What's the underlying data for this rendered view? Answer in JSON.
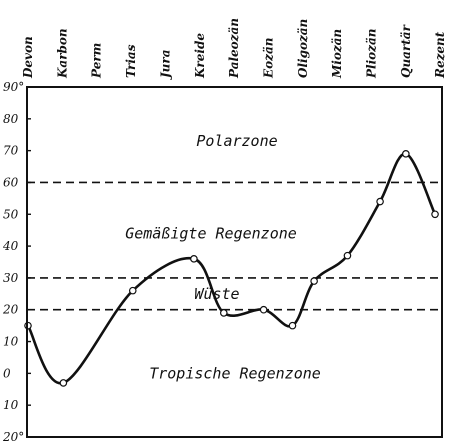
{
  "chart_data": {
    "type": "line",
    "title": "",
    "xlabel": "",
    "ylabel": "",
    "periods": [
      "Devon",
      "Karbon",
      "Perm",
      "Trias",
      "Jura",
      "Kreide",
      "Paleozän",
      "Eozän",
      "Oligozän",
      "Miozän",
      "Pliozän",
      "Quartär",
      "Rezent"
    ],
    "ylim": [
      -20,
      90
    ],
    "y_ticks": [
      {
        "value": 90,
        "label": "90°"
      },
      {
        "value": 80,
        "label": "80"
      },
      {
        "value": 70,
        "label": "70"
      },
      {
        "value": 60,
        "label": "60"
      },
      {
        "value": 50,
        "label": "50"
      },
      {
        "value": 40,
        "label": "40"
      },
      {
        "value": 30,
        "label": "30"
      },
      {
        "value": 20,
        "label": "20"
      },
      {
        "value": 10,
        "label": "10"
      },
      {
        "value": 0,
        "label": "0"
      },
      {
        "value": -10,
        "label": "10"
      },
      {
        "value": -20,
        "label": "20°"
      }
    ],
    "boundaries": [
      60,
      30,
      20
    ],
    "zones": [
      {
        "label": "Polarzone",
        "y": 73
      },
      {
        "label": "Gemäßigte Regenzone",
        "y": 44
      },
      {
        "label": "Wüste",
        "y": 25
      },
      {
        "label": "Tropische Regenzone",
        "y": 0
      }
    ],
    "series": [
      {
        "values": [
          {
            "x": 0,
            "y": 15
          },
          {
            "x": 1.03,
            "y": -3
          },
          {
            "x": 3.05,
            "y": 26
          },
          {
            "x": 4.83,
            "y": 36
          },
          {
            "x": 5.7,
            "y": 19
          },
          {
            "x": 6.86,
            "y": 20
          },
          {
            "x": 7.7,
            "y": 15
          },
          {
            "x": 8.33,
            "y": 29
          },
          {
            "x": 9.3,
            "y": 37
          },
          {
            "x": 10.25,
            "y": 54
          },
          {
            "x": 11.0,
            "y": 69
          },
          {
            "x": 11.85,
            "y": 50
          }
        ]
      }
    ],
    "grid": false,
    "legend": "none"
  }
}
